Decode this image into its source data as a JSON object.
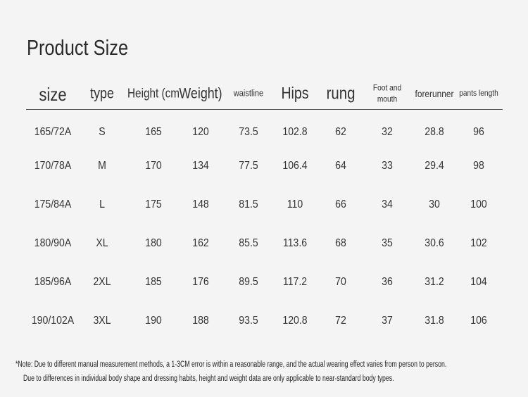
{
  "title": "Product Size",
  "table": {
    "headers": [
      "size",
      "type",
      "Height (cm",
      "Weight)",
      "waistline",
      "Hips",
      "rung",
      "Foot and mouth",
      "forerunner",
      "pants length"
    ],
    "rows": [
      [
        "165/72A",
        "S",
        "165",
        "120",
        "73.5",
        "102.8",
        "62",
        "32",
        "28.8",
        "96"
      ],
      [
        "170/78A",
        "M",
        "170",
        "134",
        "77.5",
        "106.4",
        "64",
        "33",
        "29.4",
        "98"
      ],
      [
        "175/84A",
        "L",
        "175",
        "148",
        "81.5",
        "110",
        "66",
        "34",
        "30",
        "100"
      ],
      [
        "180/90A",
        "XL",
        "180",
        "162",
        "85.5",
        "113.6",
        "68",
        "35",
        "30.6",
        "102"
      ],
      [
        "185/96A",
        "2XL",
        "185",
        "176",
        "89.5",
        "117.2",
        "70",
        "36",
        "31.2",
        "104"
      ],
      [
        "190/102A",
        "3XL",
        "190",
        "188",
        "93.5",
        "120.8",
        "72",
        "37",
        "31.8",
        "106"
      ]
    ]
  },
  "notes": [
    "*Note: Due to different manual measurement methods, a 1-3CM error is within a reasonable range, and the actual wearing effect varies from person to person.",
    "Due to differences in individual body shape and dressing habits, height and weight data are only applicable to near-standard body types."
  ]
}
